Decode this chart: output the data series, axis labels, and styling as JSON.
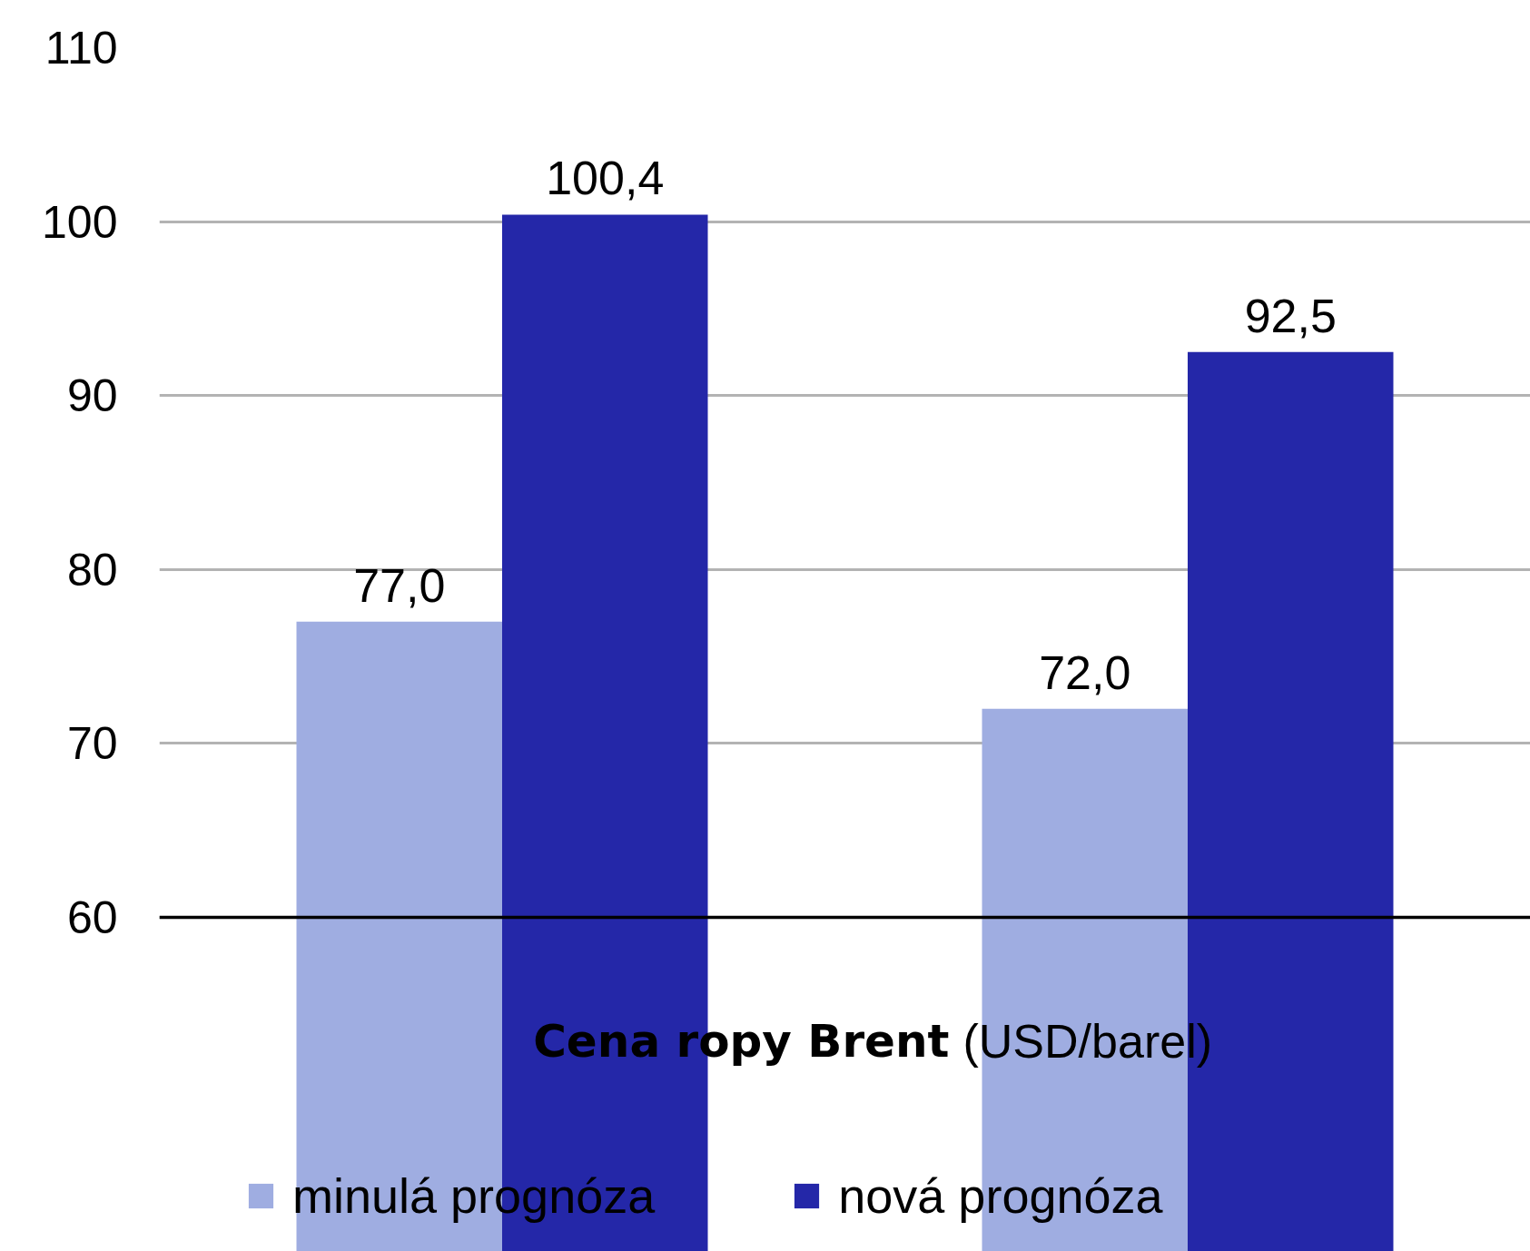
{
  "chart_data": {
    "type": "bar",
    "title": "Cena ropy Brent",
    "subtitle": "(USD/barel)",
    "categories": [
      null,
      null
    ],
    "series": [
      {
        "name": "minulá prognóza",
        "color": "#9fade1",
        "values": [
          77.0,
          72.0
        ],
        "value_labels": [
          "77,0",
          "72,0"
        ]
      },
      {
        "name": "nová prognóza",
        "color": "#2427a8",
        "values": [
          100.4,
          92.5
        ],
        "value_labels": [
          "100,4",
          "92,5"
        ]
      }
    ],
    "ylim": [
      40.8,
      110
    ],
    "yticks": [
      60,
      70,
      80,
      90,
      100,
      110
    ],
    "ref_lines": [
      {
        "axis": "y",
        "value": 60,
        "color": "#000000"
      }
    ],
    "grid": "y",
    "legend": "bottom"
  }
}
